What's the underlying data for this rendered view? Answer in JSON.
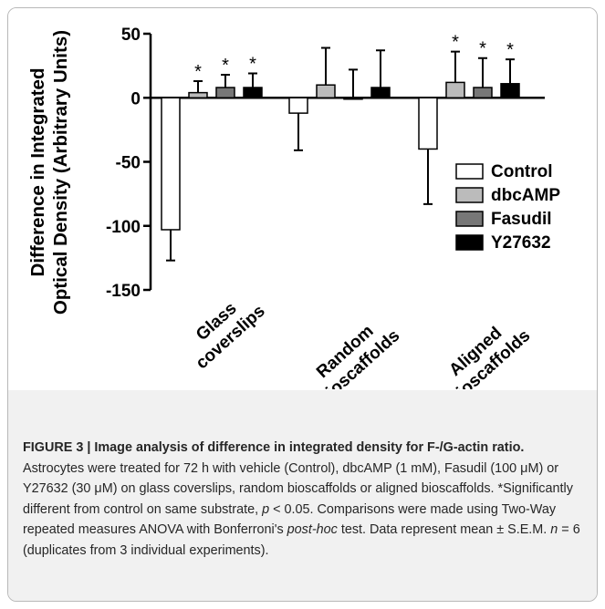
{
  "chart_data": {
    "type": "bar",
    "ylabel_line1": "Difference in Integrated",
    "ylabel_line2": "Optical Density (Arbitrary Units)",
    "ylim": [
      -150,
      50
    ],
    "yticks": [
      50,
      0,
      -50,
      -100,
      -150
    ],
    "categories": [
      {
        "line1": "Glass",
        "line2": "coverslips"
      },
      {
        "line1": "Random",
        "line2": "bioscaffolds"
      },
      {
        "line1": "Aligned",
        "line2": "bioscaffolds"
      }
    ],
    "series": [
      {
        "name": "Control",
        "color": "#ffffff",
        "values": [
          -103,
          -12,
          -40
        ],
        "errors": [
          24,
          29,
          43
        ],
        "significant": [
          false,
          false,
          false
        ]
      },
      {
        "name": "dbcAMP",
        "color": "#bbbbbb",
        "values": [
          4,
          10,
          12
        ],
        "errors": [
          9,
          29,
          24
        ],
        "significant": [
          true,
          false,
          true
        ]
      },
      {
        "name": "Fasudil",
        "color": "#777777",
        "values": [
          8,
          0,
          8
        ],
        "errors": [
          10,
          22,
          23
        ],
        "significant": [
          true,
          false,
          true
        ]
      },
      {
        "name": "Y27632",
        "color": "#000000",
        "values": [
          8,
          8,
          11
        ],
        "errors": [
          11,
          29,
          19
        ],
        "significant": [
          true,
          false,
          true
        ]
      }
    ],
    "significance_marker": "*",
    "legend_position": "right"
  },
  "caption": {
    "label": "FIGURE 3 | Image analysis of difference in integrated density for F-/G-actin ratio.",
    "text_1": " Astrocytes were treated for 72 h with vehicle (Control), dbcAMP (1 mM), Fasudil (100 μM) or Y27632 (30 μM) on glass coverslips, random bioscaffolds or aligned bioscaffolds. *Significantly different from control on same substrate, ",
    "p_symbol": "p",
    "text_2": " < 0.05. Comparisons were made using Two-Way repeated measures ANOVA with Bonferroni's ",
    "posthoc": "post-hoc",
    "text_3": " test. Data represent mean ± S.E.M. ",
    "n_symbol": "n",
    "text_4": " = 6 (duplicates from 3 individual experiments)."
  }
}
